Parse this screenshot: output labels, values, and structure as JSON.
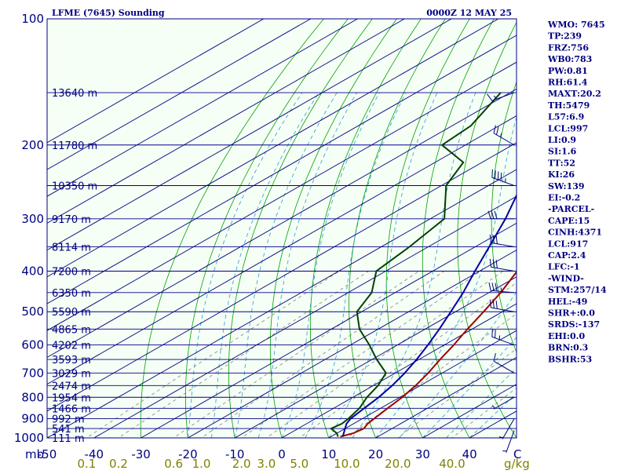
{
  "chart_data": {
    "type": "line",
    "diagram": "skew-T log-P",
    "title": "LFME (7645) Sounding",
    "time": "0000Z 12 MAY 25",
    "pressure_unit_label": "mb",
    "mixing_ratio_unit_label": "g/kg",
    "plim": [
      1000,
      100
    ],
    "pressure_ticks": [
      100,
      200,
      300,
      400,
      500,
      600,
      700,
      800,
      900,
      1000
    ],
    "temperature_ticks": [
      "-50",
      "-40",
      "-30",
      "-20",
      "-10",
      "0",
      "10",
      "20",
      "30",
      "40"
    ],
    "temperature_corner_label": "C",
    "mixing_ratio_ticks": [
      "0.1",
      "0.2",
      "0.6",
      "1.0",
      "2.0",
      "3.0",
      "5.0",
      "10.0",
      "20.0",
      "40.0"
    ],
    "height_levels": [
      {
        "p": 150,
        "label": "13640 m"
      },
      {
        "p": 200,
        "label": "11780 m"
      },
      {
        "p": 250,
        "label": "10350 m"
      },
      {
        "p": 300,
        "label": "9170 m"
      },
      {
        "p": 350,
        "label": "8114 m"
      },
      {
        "p": 400,
        "label": "7200 m"
      },
      {
        "p": 450,
        "label": "6350 m"
      },
      {
        "p": 500,
        "label": "5590 m"
      },
      {
        "p": 550,
        "label": "4865 m"
      },
      {
        "p": 600,
        "label": "4202 m"
      },
      {
        "p": 650,
        "label": "3593 m"
      },
      {
        "p": 700,
        "label": "3029 m"
      },
      {
        "p": 750,
        "label": "2474 m"
      },
      {
        "p": 800,
        "label": "1954 m"
      },
      {
        "p": 850,
        "label": "1466 m"
      },
      {
        "p": 900,
        "label": "992 m"
      },
      {
        "p": 950,
        "label": "541 m"
      },
      {
        "p": 1000,
        "label": "111 m"
      }
    ],
    "series": [
      {
        "role": "temperature",
        "color": "#A00000",
        "points": [
          [
            993,
            12
          ],
          [
            975,
            13.5
          ],
          [
            950,
            14
          ],
          [
            925,
            13
          ],
          [
            900,
            12.5
          ],
          [
            850,
            11.5
          ],
          [
            800,
            10.5
          ],
          [
            750,
            9
          ],
          [
            700,
            7
          ],
          [
            650,
            4.5
          ],
          [
            600,
            2
          ],
          [
            550,
            -1
          ],
          [
            500,
            -4
          ],
          [
            450,
            -7.5
          ],
          [
            400,
            -12
          ],
          [
            350,
            -17
          ],
          [
            300,
            -23
          ],
          [
            280,
            -27
          ],
          [
            250,
            -34
          ],
          [
            220,
            -42
          ],
          [
            200,
            -47
          ],
          [
            180,
            -48
          ],
          [
            150,
            -52
          ]
        ]
      },
      {
        "role": "dewpoint",
        "color": "#004000",
        "points": [
          [
            993,
            11.5
          ],
          [
            975,
            10
          ],
          [
            950,
            7
          ],
          [
            925,
            7.5
          ],
          [
            900,
            7
          ],
          [
            850,
            5.5
          ],
          [
            800,
            3
          ],
          [
            750,
            1
          ],
          [
            700,
            -2
          ],
          [
            650,
            -9
          ],
          [
            600,
            -16
          ],
          [
            550,
            -24
          ],
          [
            500,
            -31
          ],
          [
            450,
            -35
          ],
          [
            400,
            -42
          ],
          [
            350,
            -44
          ],
          [
            300,
            -47
          ],
          [
            250,
            -59
          ],
          [
            220,
            -64
          ],
          [
            200,
            -75
          ],
          [
            180,
            -76
          ],
          [
            150,
            -82
          ]
        ]
      },
      {
        "role": "parcel",
        "color": "#0000A0",
        "points": [
          [
            993,
            12.5
          ],
          [
            950,
            10
          ],
          [
            925,
            8.5
          ],
          [
            900,
            7.5
          ],
          [
            850,
            6.5
          ],
          [
            800,
            5.5
          ],
          [
            750,
            4
          ],
          [
            700,
            2
          ],
          [
            650,
            -0.5
          ],
          [
            600,
            -3.5
          ],
          [
            550,
            -7
          ],
          [
            500,
            -11
          ],
          [
            450,
            -15.5
          ],
          [
            400,
            -21
          ],
          [
            350,
            -27
          ],
          [
            300,
            -34
          ],
          [
            250,
            -43
          ],
          [
            200,
            -53
          ],
          [
            150,
            -66
          ],
          [
            120,
            -75
          ],
          [
            105,
            -82
          ]
        ]
      }
    ],
    "wind_barbs": [
      {
        "p": 960,
        "dir": 200,
        "speed_kt": 5
      },
      {
        "p": 900,
        "dir": 210,
        "speed_kt": 5
      },
      {
        "p": 800,
        "dir": 240,
        "speed_kt": 5
      },
      {
        "p": 700,
        "dir": 300,
        "speed_kt": 10
      },
      {
        "p": 600,
        "dir": 290,
        "speed_kt": 25
      },
      {
        "p": 500,
        "dir": 280,
        "speed_kt": 30
      },
      {
        "p": 450,
        "dir": 275,
        "speed_kt": 35
      },
      {
        "p": 400,
        "dir": 280,
        "speed_kt": 30
      },
      {
        "p": 350,
        "dir": 280,
        "speed_kt": 30
      },
      {
        "p": 300,
        "dir": 270,
        "speed_kt": 30
      },
      {
        "p": 250,
        "dir": 290,
        "speed_kt": 45
      },
      {
        "p": 200,
        "dir": 300,
        "speed_kt": 25
      },
      {
        "p": 150,
        "dir": 250,
        "speed_kt": 15
      }
    ],
    "indices": [
      "WMO: 7645",
      "TP:239",
      "FRZ:756",
      "WB0:783",
      "PW:0.81",
      "RH:61.4",
      "MAXT:20.2",
      "TH:5479",
      "L57:6.9",
      "LCL:997",
      "LI:0.9",
      "SI:1.6",
      "TT:52",
      "KI:26",
      "SW:139",
      "EI:-0.2",
      "-PARCEL-",
      "CAPE:15",
      "CINH:4371",
      "LCL:917",
      "CAP:2.4",
      "LFC:-1",
      "-WIND-",
      "STM:257/14",
      "HEL:-49",
      "SHR+:0.0",
      "SRDS:-137",
      "EHI:0.0",
      "BRN:0.3",
      "BSHR:53"
    ],
    "colors": {
      "background": "#F5FFF5",
      "axis": "#000080",
      "isobar": "#00008B",
      "isotherm": "#000080",
      "dry_adiabat": "#00A000",
      "moist_adiabat": "#2A9BD8",
      "mixing_ratio": "#808080",
      "mixing_ratio_label": "#808000"
    }
  }
}
